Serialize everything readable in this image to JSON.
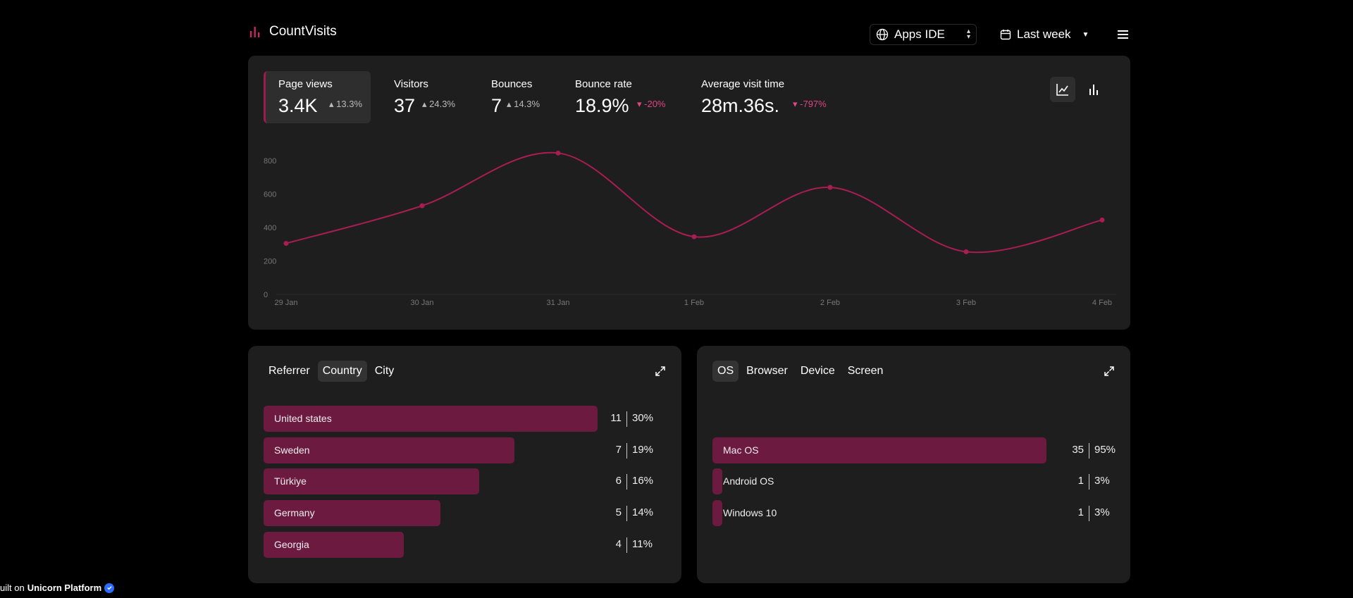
{
  "header": {
    "app_name": "CountVisits",
    "site": "Apps IDE",
    "range": "Last week"
  },
  "stats": [
    {
      "label": "Page views",
      "value": "3.4K",
      "change": "13.3%",
      "direction": "up"
    },
    {
      "label": "Visitors",
      "value": "37",
      "change": "24.3%",
      "direction": "up"
    },
    {
      "label": "Bounces",
      "value": "7",
      "change": "14.3%",
      "direction": "up"
    },
    {
      "label": "Bounce rate",
      "value": "18.9%",
      "change": "-20%",
      "direction": "down"
    },
    {
      "label": "Average visit time",
      "value": "28m.36s.",
      "change": "-797%",
      "direction": "down"
    }
  ],
  "chart_data": {
    "type": "line",
    "x": [
      "29 Jan",
      "30 Jan",
      "31 Jan",
      "1 Feb",
      "2 Feb",
      "3 Feb",
      "4 Feb"
    ],
    "series": [
      {
        "values": [
          305,
          530,
          845,
          345,
          640,
          255,
          445
        ]
      }
    ],
    "ylim": [
      0,
      800
    ],
    "yticks": [
      "0",
      "200",
      "400",
      "600",
      "800"
    ],
    "color": "#a91d52"
  },
  "left_panel": {
    "tabs": [
      "Referrer",
      "Country",
      "City"
    ],
    "active_tab": "Country",
    "rows": [
      {
        "label": "United states",
        "count": "11",
        "pct": "30%",
        "share": 1.0
      },
      {
        "label": "Sweden",
        "count": "7",
        "pct": "19%",
        "share": 0.75
      },
      {
        "label": "Türkiye",
        "count": "6",
        "pct": "16%",
        "share": 0.645
      },
      {
        "label": "Germany",
        "count": "5",
        "pct": "14%",
        "share": 0.53
      },
      {
        "label": "Georgia",
        "count": "4",
        "pct": "11%",
        "share": 0.42
      }
    ]
  },
  "right_panel": {
    "tabs": [
      "OS",
      "Browser",
      "Device",
      "Screen"
    ],
    "active_tab": "OS",
    "rows": [
      {
        "label": "Mac OS",
        "count": "35",
        "pct": "95%",
        "share": 1.0
      },
      {
        "label": "Android OS",
        "count": "1",
        "pct": "3%",
        "share": 0.03
      },
      {
        "label": "Windows 10",
        "count": "1",
        "pct": "3%",
        "share": 0.03
      }
    ]
  },
  "footer": {
    "prefix": "uilt on",
    "brand": "Unicorn Platform"
  },
  "colors": {
    "accent": "#a91d52",
    "bar": "#6d1a40",
    "card": "#1e1e1e",
    "background": "#000000"
  }
}
